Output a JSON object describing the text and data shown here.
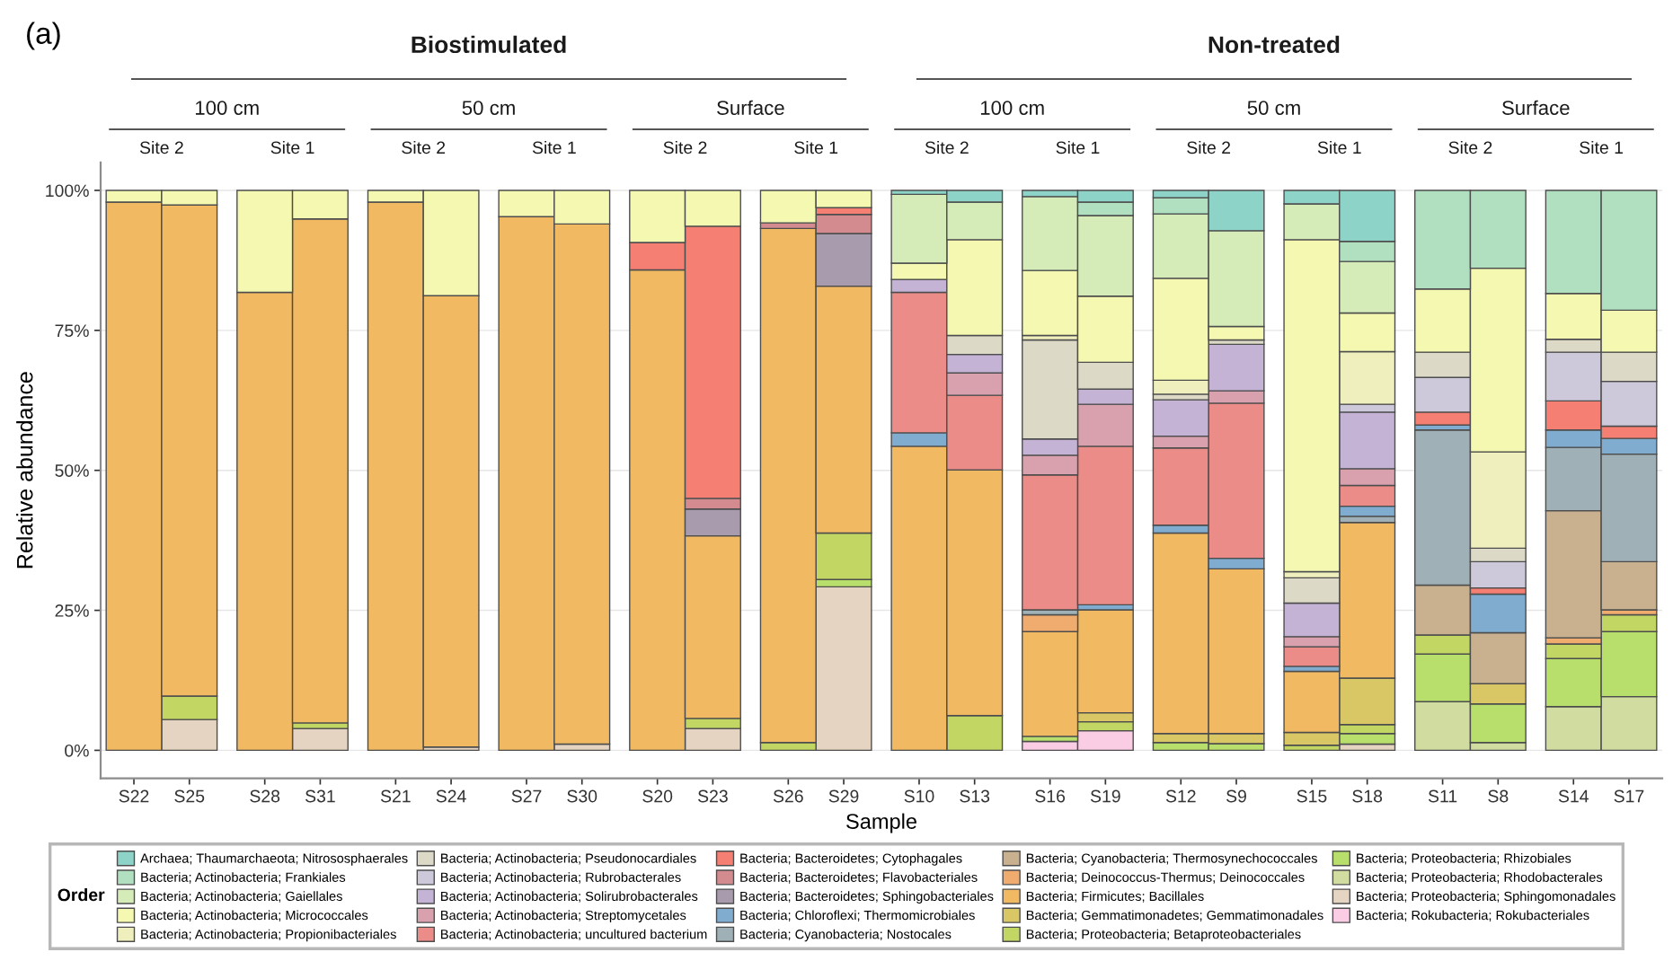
{
  "chart_data": {
    "type": "bar",
    "stacked": true,
    "xlabel": "Sample",
    "ylabel": "Relative abundance",
    "legend_title": "Order",
    "legend": "bottom",
    "grid": "y",
    "ylim": [
      -5,
      105
    ],
    "yticks": [
      {
        "value": 0,
        "label": "0%"
      },
      {
        "value": 25,
        "label": "25%"
      },
      {
        "value": 50,
        "label": "50%"
      },
      {
        "value": 75,
        "label": "75%"
      },
      {
        "value": 100,
        "label": "100%"
      }
    ],
    "annotations": [
      "(a)",
      "Biostimulated",
      "Non-treated",
      "100 cm",
      "50 cm",
      "Surface",
      "100 cm",
      "50 cm",
      "Surface",
      "Site 2",
      "Site 1",
      "Site 2",
      "Site 1",
      "Site 2",
      "Site 1",
      "Site 2",
      "Site 1",
      "Site 2",
      "Site 1",
      "Site 2",
      "Site 1"
    ],
    "categories": [
      "S22",
      "S25",
      "S28",
      "S31",
      "S21",
      "S24",
      "S27",
      "S30",
      "S20",
      "S23",
      "S26",
      "S29",
      "S10",
      "S13",
      "S16",
      "S19",
      "S12",
      "S9",
      "S15",
      "S18",
      "S11",
      "S8",
      "S14",
      "S17"
    ],
    "series": [
      {
        "name": "Bacteria; Rokubacteria; Rokubacteriales",
        "color": "#fbcde5",
        "values": [
          null,
          null,
          null,
          null,
          null,
          null,
          null,
          null,
          null,
          null,
          null,
          null,
          null,
          null,
          1.6,
          3.5,
          null,
          null,
          null,
          null,
          null,
          null,
          null,
          null
        ]
      },
      {
        "name": "Bacteria; Proteobacteria; Sphingomonadales",
        "color": "#e5d4c1",
        "values": [
          null,
          5.5,
          null,
          3.9,
          null,
          0.6,
          null,
          1.1,
          null,
          3.9,
          null,
          29.2,
          null,
          null,
          null,
          null,
          null,
          null,
          null,
          1.1,
          null,
          null,
          null,
          null
        ]
      },
      {
        "name": "Bacteria; Proteobacteria; Rhodobacterales",
        "color": "#d1dca0",
        "values": [
          null,
          null,
          null,
          null,
          null,
          null,
          null,
          null,
          null,
          null,
          null,
          null,
          null,
          null,
          null,
          null,
          null,
          null,
          null,
          null,
          8.7,
          1.4,
          7.8,
          9.6
        ]
      },
      {
        "name": "Bacteria; Proteobacteria; Rhizobiales",
        "color": "#b8de6c",
        "values": [
          null,
          null,
          null,
          null,
          null,
          null,
          null,
          null,
          null,
          null,
          null,
          1.3,
          null,
          null,
          0.9,
          null,
          1.4,
          1.2,
          null,
          1.9,
          8.5,
          6.9,
          8.6,
          11.6
        ]
      },
      {
        "name": "Bacteria; Proteobacteria; Betaproteobacteriales",
        "color": "#c2d663",
        "values": [
          null,
          4.2,
          null,
          1.0,
          null,
          null,
          null,
          null,
          null,
          1.8,
          1.4,
          8.3,
          null,
          6.2,
          null,
          1.6,
          null,
          null,
          0.9,
          1.6,
          3.4,
          null,
          2.6,
          3.0
        ]
      },
      {
        "name": "Bacteria; Gemmatimonadetes; Gemmatimonadales",
        "color": "#d9c766",
        "values": [
          null,
          null,
          null,
          null,
          null,
          null,
          null,
          null,
          null,
          null,
          null,
          null,
          null,
          null,
          null,
          1.6,
          1.6,
          1.8,
          2.3,
          8.3,
          null,
          3.6,
          null,
          null
        ]
      },
      {
        "name": "Bacteria; Firmicutes; Bacillales",
        "color": "#f0b962",
        "values": [
          97.9,
          87.7,
          81.8,
          90.0,
          97.9,
          80.6,
          95.3,
          92.9,
          85.8,
          32.6,
          91.8,
          44.1,
          54.3,
          43.9,
          18.7,
          18.4,
          35.8,
          29.4,
          10.9,
          27.8,
          null,
          null,
          null,
          null
        ]
      },
      {
        "name": "Bacteria; Deinococcus-Thermus; Deinococcales",
        "color": "#f0ac6e",
        "values": [
          null,
          null,
          null,
          null,
          null,
          null,
          null,
          null,
          null,
          null,
          null,
          null,
          null,
          null,
          3.0,
          null,
          null,
          null,
          null,
          null,
          null,
          null,
          1.1,
          0.9
        ]
      },
      {
        "name": "Bacteria; Cyanobacteria; Thermosynechococcales",
        "color": "#c9b08f",
        "values": [
          null,
          null,
          null,
          null,
          null,
          null,
          null,
          null,
          null,
          null,
          null,
          null,
          null,
          null,
          null,
          null,
          null,
          null,
          null,
          null,
          8.9,
          9.1,
          22.7,
          8.6
        ]
      },
      {
        "name": "Bacteria; Cyanobacteria; Nostocales",
        "color": "#9fb1b6",
        "values": [
          null,
          null,
          null,
          null,
          null,
          null,
          null,
          null,
          null,
          null,
          null,
          null,
          null,
          null,
          0.9,
          null,
          null,
          null,
          null,
          1.1,
          27.7,
          null,
          11.3,
          19.2
        ]
      },
      {
        "name": "Bacteria; Chloroflexi; Thermomicrobiales",
        "color": "#80acd0",
        "values": [
          null,
          null,
          null,
          null,
          null,
          null,
          null,
          null,
          null,
          null,
          null,
          null,
          2.4,
          null,
          null,
          0.9,
          1.4,
          1.9,
          0.9,
          1.8,
          0.9,
          6.9,
          3.1,
          2.8
        ]
      },
      {
        "name": "Bacteria; Bacteroidetes; Sphingobacteriales",
        "color": "#a89bad",
        "values": [
          null,
          null,
          null,
          null,
          null,
          null,
          null,
          null,
          null,
          4.8,
          null,
          9.4,
          null,
          null,
          null,
          null,
          null,
          null,
          null,
          null,
          null,
          null,
          null,
          null
        ]
      },
      {
        "name": "Bacteria; Bacteroidetes; Flavobacteriales",
        "color": "#d48b8f",
        "values": [
          null,
          null,
          null,
          null,
          null,
          null,
          null,
          null,
          null,
          1.9,
          1.0,
          3.4,
          null,
          null,
          null,
          null,
          null,
          null,
          null,
          null,
          null,
          null,
          null,
          null
        ]
      },
      {
        "name": "Bacteria; Bacteroidetes; Cytophagales",
        "color": "#f47f72",
        "values": [
          null,
          null,
          null,
          null,
          null,
          null,
          null,
          null,
          4.9,
          48.6,
          null,
          1.2,
          null,
          null,
          null,
          null,
          null,
          null,
          null,
          null,
          2.3,
          1.1,
          5.2,
          2.2
        ]
      },
      {
        "name": "Bacteria; Actinobacteria; uncultured bacterium",
        "color": "#ec8c88",
        "values": [
          null,
          null,
          null,
          null,
          null,
          null,
          null,
          null,
          null,
          null,
          null,
          null,
          25.1,
          13.3,
          24.1,
          28.3,
          13.8,
          27.7,
          3.5,
          3.7,
          null,
          null,
          null,
          null
        ]
      },
      {
        "name": "Bacteria; Actinobacteria; Streptomycetales",
        "color": "#d9a1ae",
        "values": [
          null,
          null,
          null,
          null,
          null,
          null,
          null,
          null,
          null,
          null,
          null,
          null,
          null,
          4.0,
          3.5,
          7.5,
          2.1,
          2.2,
          1.8,
          3.0,
          null,
          null,
          null,
          null
        ]
      },
      {
        "name": "Bacteria; Actinobacteria; Solirubrobacterales",
        "color": "#c5b3d6",
        "values": [
          null,
          null,
          null,
          null,
          null,
          null,
          null,
          null,
          null,
          null,
          null,
          null,
          2.3,
          3.3,
          2.9,
          2.7,
          6.5,
          8.3,
          6.0,
          10.1,
          null,
          null,
          null,
          null
        ]
      },
      {
        "name": "Bacteria; Actinobacteria; Rubrobacterales",
        "color": "#cdc8da",
        "values": [
          null,
          null,
          null,
          null,
          null,
          null,
          null,
          null,
          null,
          null,
          null,
          null,
          null,
          null,
          null,
          null,
          null,
          null,
          null,
          1.4,
          6.2,
          4.7,
          8.7,
          8.0
        ]
      },
      {
        "name": "Bacteria; Actinobacteria; Pseudonocardiales",
        "color": "#dcd9c6",
        "values": [
          null,
          null,
          null,
          null,
          null,
          null,
          null,
          null,
          null,
          null,
          null,
          null,
          null,
          3.4,
          17.7,
          4.8,
          1.0,
          0.8,
          4.5,
          null,
          4.5,
          2.4,
          2.3,
          5.2
        ]
      },
      {
        "name": "Bacteria; Actinobacteria; Propionibacteriales",
        "color": "#efefbe",
        "values": [
          null,
          null,
          null,
          null,
          null,
          null,
          null,
          null,
          null,
          null,
          null,
          null,
          null,
          null,
          0.8,
          null,
          2.5,
          null,
          1.1,
          9.4,
          null,
          17.2,
          null,
          null
        ]
      },
      {
        "name": "Bacteria; Actinobacteria; Micrococcales",
        "color": "#f4f8b0",
        "values": [
          2.1,
          2.6,
          18.2,
          5.1,
          2.1,
          18.8,
          4.7,
          6.0,
          9.3,
          6.4,
          5.8,
          3.1,
          2.9,
          17.1,
          11.6,
          11.8,
          18.2,
          2.4,
          59.3,
          6.9,
          11.3,
          32.8,
          8.2,
          7.5
        ]
      },
      {
        "name": "Bacteria; Actinobacteria; Gaiellales",
        "color": "#d5ecb9",
        "values": [
          null,
          null,
          null,
          null,
          null,
          null,
          null,
          null,
          null,
          null,
          null,
          null,
          12.3,
          6.7,
          13.2,
          14.4,
          11.5,
          17.1,
          6.4,
          9.2,
          null,
          null,
          null,
          null
        ]
      },
      {
        "name": "Bacteria; Actinobacteria; Frankiales",
        "color": "#b0e0c0",
        "values": [
          null,
          null,
          null,
          null,
          null,
          null,
          null,
          null,
          null,
          null,
          null,
          null,
          null,
          null,
          null,
          2.4,
          2.9,
          null,
          null,
          3.6,
          17.6,
          13.9,
          18.4,
          21.4
        ]
      },
      {
        "name": "Archaea; Thaumarchaeota; Nitrososphaerales",
        "color": "#8dd3c7",
        "values": [
          null,
          null,
          null,
          null,
          null,
          null,
          null,
          null,
          null,
          null,
          null,
          null,
          0.7,
          2.1,
          1.1,
          2.1,
          1.3,
          7.2,
          2.4,
          9.1,
          null,
          null,
          null,
          null
        ]
      }
    ]
  }
}
